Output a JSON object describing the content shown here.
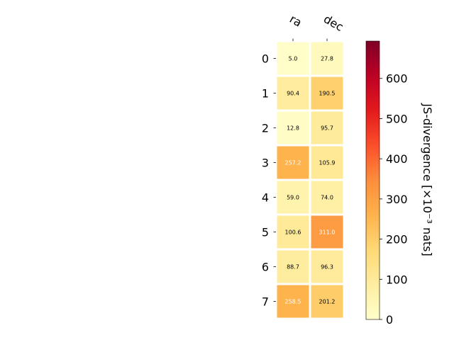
{
  "chart_data": {
    "type": "heatmap",
    "columns": [
      "ra",
      "dec"
    ],
    "rows": [
      "0",
      "1",
      "2",
      "3",
      "4",
      "5",
      "6",
      "7"
    ],
    "values": [
      [
        5.0,
        27.8
      ],
      [
        90.4,
        190.5
      ],
      [
        12.8,
        95.7
      ],
      [
        257.2,
        105.9
      ],
      [
        59.0,
        74.0
      ],
      [
        100.6,
        311.0
      ],
      [
        88.7,
        96.3
      ],
      [
        258.5,
        201.2
      ]
    ],
    "cell_labels": [
      [
        "5.0",
        "27.8"
      ],
      [
        "90.4",
        "190.5"
      ],
      [
        "12.8",
        "95.7"
      ],
      [
        "257.2",
        "105.9"
      ],
      [
        "59.0",
        "74.0"
      ],
      [
        "100.6",
        "311.0"
      ],
      [
        "88.7",
        "96.3"
      ],
      [
        "258.5",
        "201.2"
      ]
    ],
    "colorbar": {
      "label": "JS-divergence [×10⁻³ nats]",
      "range": [
        0,
        693
      ],
      "ticks": [
        0,
        100,
        200,
        300,
        400,
        500,
        600
      ],
      "tick_labels": [
        "0",
        "100",
        "200",
        "300",
        "400",
        "500",
        "600"
      ],
      "colormap": "YlOrRd"
    }
  }
}
